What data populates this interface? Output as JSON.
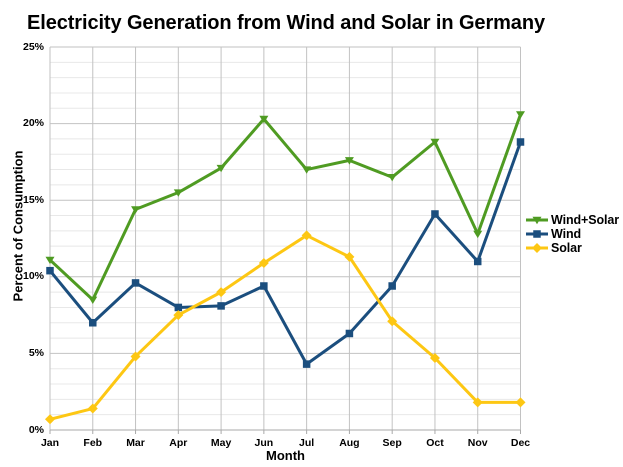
{
  "title": "Electricity Generation from Wind and Solar in Germany",
  "chart_data": {
    "type": "line",
    "title": "Electricity Generation from Wind and Solar in Germany",
    "xlabel": "Month",
    "ylabel": "Percent of Consumption",
    "x": [
      "Jan",
      "Feb",
      "Mar",
      "Apr",
      "May",
      "Jun",
      "Jul",
      "Aug",
      "Sep",
      "Oct",
      "Nov",
      "Dec"
    ],
    "y_tick_labels": [
      "0%",
      "5%",
      "10%",
      "15%",
      "20%",
      "25%"
    ],
    "ylim": [
      0,
      25
    ],
    "y_major_step": 5,
    "y_minor_step": 1,
    "grid": "horizontal minor every 1%, major every 5%, vertical line at each month",
    "legend_position": "right",
    "series": [
      {
        "name": "Wind+Solar",
        "color": "#4f9b22",
        "marker": "triangle-down",
        "values": [
          11.1,
          8.5,
          14.4,
          15.5,
          17.1,
          20.3,
          17.0,
          17.6,
          16.5,
          18.8,
          12.8,
          20.6
        ]
      },
      {
        "name": "Wind",
        "color": "#1b4e7e",
        "marker": "square",
        "values": [
          10.4,
          7.0,
          9.6,
          8.0,
          8.1,
          9.4,
          4.3,
          6.3,
          9.4,
          14.1,
          11.0,
          18.8
        ]
      },
      {
        "name": "Solar",
        "color": "#fdc713",
        "marker": "diamond",
        "values": [
          0.7,
          1.4,
          4.8,
          7.5,
          9.0,
          10.9,
          12.7,
          11.3,
          7.1,
          4.7,
          1.8,
          1.8
        ]
      }
    ]
  },
  "style": {
    "background": "#ffffff",
    "text_color": "#000000",
    "minor_grid_color": "#e8e8e8",
    "major_grid_color": "#c2c2c2",
    "axis_color": "#a9a9a9",
    "line_width": 3
  }
}
